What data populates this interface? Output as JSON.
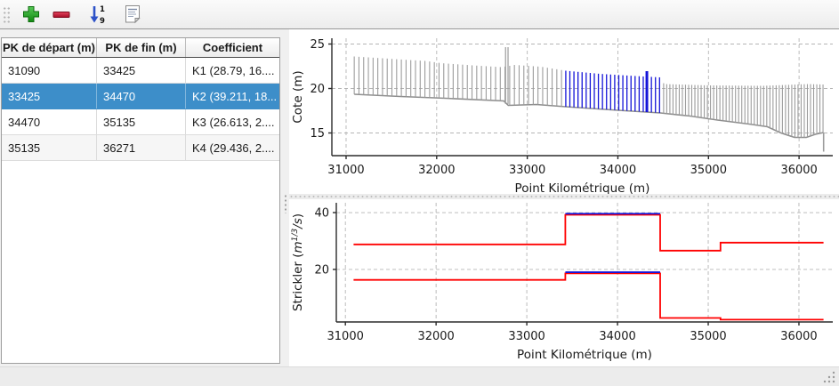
{
  "toolbar": {
    "sort_top": "1",
    "sort_bottom": "9"
  },
  "table": {
    "columns": [
      "PK de départ (m)",
      "PK de fin (m)",
      "Coefficient"
    ],
    "rows": [
      [
        "31090",
        "33425",
        "K1 (28.79, 16...."
      ],
      [
        "33425",
        "34470",
        "K2 (39.211, 18..."
      ],
      [
        "34470",
        "35135",
        "K3 (26.613, 2...."
      ],
      [
        "35135",
        "36271",
        "K4 (29.436, 2...."
      ]
    ],
    "selected_row": 1,
    "selection_color": "#3d8ec9"
  },
  "chart_data": [
    {
      "type": "profile",
      "xlabel": "Point Kilométrique (m)",
      "ylabel": "Cote (m)",
      "xlim": [
        30843,
        36372
      ],
      "ylim": [
        12.45,
        25.65
      ],
      "xticks": [
        31000,
        32000,
        33000,
        34000,
        35000,
        36000
      ],
      "yticks": [
        15,
        20,
        25
      ],
      "grid": true,
      "line_color": "#9c9c9c",
      "envelope_color": "#8e8e8e",
      "highlight_color": "#1414d8",
      "highlight_range": [
        33425,
        34470
      ],
      "sections": [
        {
          "from": 31090,
          "to": 33425,
          "dx": 52
        },
        {
          "from": 33425,
          "to": 34470,
          "dx": 45
        },
        {
          "from": 34505,
          "to": 36271,
          "dx": 34.5
        }
      ],
      "bottom_envelope": [
        [
          31090,
          19.35
        ],
        [
          31600,
          19.1
        ],
        [
          32100,
          18.9
        ],
        [
          32740,
          18.6
        ],
        [
          32790,
          18.1
        ],
        [
          33100,
          18.2
        ],
        [
          33425,
          17.95
        ],
        [
          34000,
          17.55
        ],
        [
          34470,
          17.25
        ],
        [
          34800,
          16.9
        ],
        [
          35100,
          16.45
        ],
        [
          35450,
          16.0
        ],
        [
          35650,
          15.7
        ],
        [
          35800,
          15.0
        ],
        [
          35950,
          14.5
        ],
        [
          36080,
          14.5
        ],
        [
          36180,
          14.85
        ],
        [
          36271,
          15.05
        ]
      ],
      "top_envelope": [
        [
          31090,
          23.6
        ],
        [
          31400,
          23.4
        ],
        [
          31700,
          23.2
        ],
        [
          31880,
          23.1
        ],
        [
          32050,
          22.85
        ],
        [
          32400,
          22.6
        ],
        [
          32720,
          22.4
        ],
        [
          32860,
          22.65
        ],
        [
          33150,
          22.45
        ],
        [
          33425,
          22.0
        ],
        [
          33800,
          21.65
        ],
        [
          34200,
          21.4
        ],
        [
          34470,
          21.25
        ],
        [
          34510,
          20.5
        ],
        [
          35000,
          20.35
        ],
        [
          35600,
          20.3
        ],
        [
          36100,
          20.5
        ],
        [
          36271,
          20.45
        ]
      ],
      "spikes": [
        {
          "x": 32774,
          "top": 24.65,
          "style": "double"
        },
        {
          "x": 34320,
          "top": 21.95,
          "style": "bold"
        }
      ],
      "end_drop": {
        "x": 36271,
        "top": 15.05,
        "bottom": 12.9
      }
    },
    {
      "type": "step",
      "xlabel": "Point Kilométrique (m)",
      "ylabel": "Strickler (m1/3/s)",
      "ylabel_parts": [
        {
          "t": "Strickler ("
        },
        {
          "t": "m",
          "i": true
        },
        {
          "t": "1/3",
          "sup": true,
          "i": true
        },
        {
          "t": "/s",
          "i": true
        },
        {
          "t": ")"
        }
      ],
      "xlim": [
        30900,
        36373
      ],
      "ylim": [
        1.5,
        43.45
      ],
      "xticks": [
        31000,
        32000,
        33000,
        34000,
        35000,
        36000
      ],
      "yticks": [
        20,
        40
      ],
      "grid": true,
      "line_color": "#ff0000",
      "highlight_color": "#1414d8",
      "highlight_range": [
        33425,
        34470
      ],
      "boundaries": [
        31090,
        33425,
        34470,
        35135,
        36271
      ],
      "series": [
        {
          "name": "upper",
          "values": [
            28.79,
            39.211,
            26.613,
            29.436
          ]
        },
        {
          "name": "lower",
          "values": [
            16.3,
            18.6,
            2.9,
            2.3
          ]
        }
      ]
    }
  ]
}
